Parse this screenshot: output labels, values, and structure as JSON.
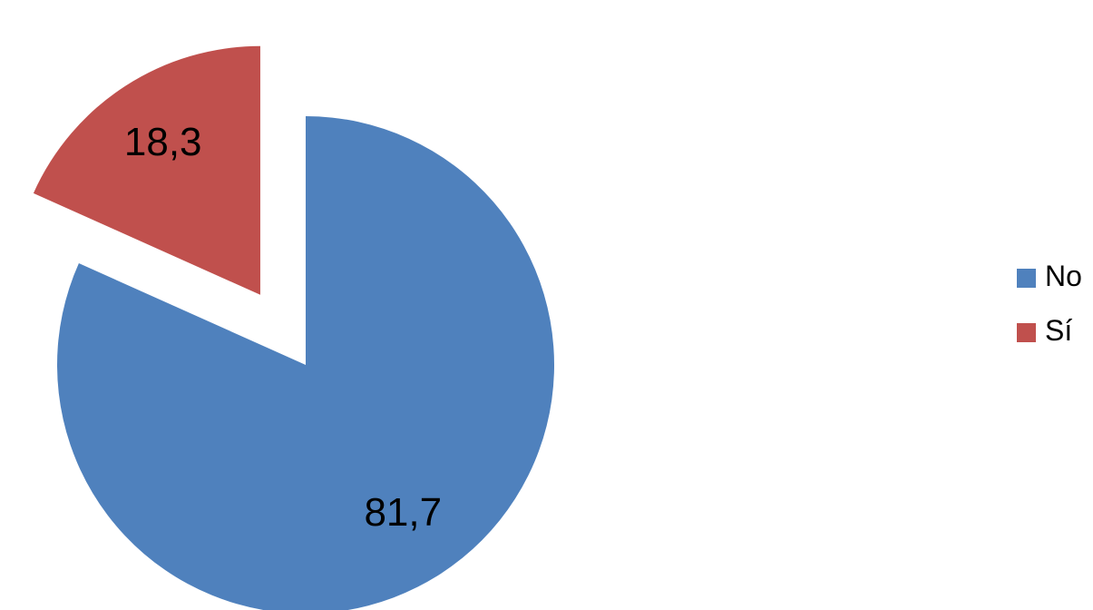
{
  "chart_data": {
    "type": "pie",
    "title": "",
    "slices": [
      {
        "label": "No",
        "value": 81.7,
        "display": "81,7",
        "color": "#4F81BD",
        "exploded": false
      },
      {
        "label": "Sí",
        "value": 18.3,
        "display": "18,3",
        "color": "#C0504D",
        "exploded": true
      }
    ],
    "legend": {
      "position": "right"
    }
  }
}
